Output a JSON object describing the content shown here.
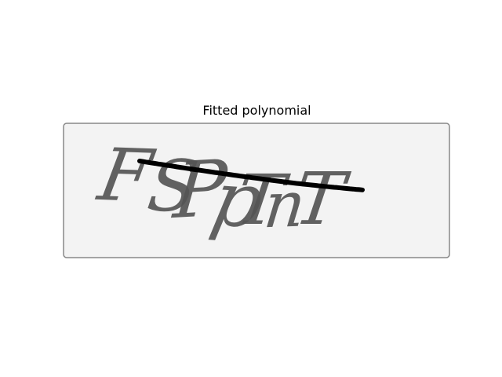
{
  "title": "Fitted polynomial",
  "captcha_text": "FSPpTnT",
  "colors": {
    "background": "#f3f3f3",
    "text": "#555555",
    "curve": "#000000",
    "frame": "#888888"
  }
}
